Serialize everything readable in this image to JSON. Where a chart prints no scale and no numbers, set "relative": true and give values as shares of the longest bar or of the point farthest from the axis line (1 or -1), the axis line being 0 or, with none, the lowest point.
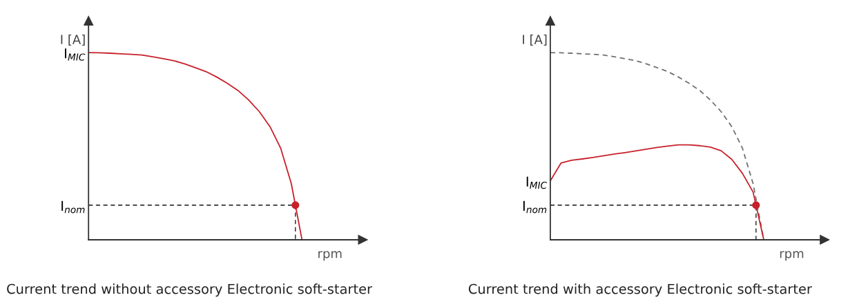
{
  "chart_data": [
    {
      "type": "line",
      "relative": true,
      "xlabel": "rpm",
      "ylabel": "I [A]",
      "categories": [
        null,
        null,
        null,
        null,
        null,
        null,
        null,
        null,
        null,
        null,
        null,
        null,
        null,
        null,
        null,
        null,
        null,
        null,
        null,
        null,
        null
      ],
      "series": [
        {
          "color": "#c8202a",
          "line_style": "solid",
          "values": [
            1.0,
            0.999,
            0.997,
            0.994,
            0.991,
            0.987,
            0.978,
            0.968,
            0.957,
            0.94,
            0.92,
            0.899,
            0.87,
            0.836,
            0.798,
            0.747,
            0.685,
            0.605,
            0.49,
            0.3,
            0
          ]
        }
      ],
      "ref_lines": [
        {
          "axis": "y",
          "value": 0.185,
          "label": "I$_{nom}$",
          "color": "#333333",
          "line_style": "dashed"
        }
      ],
      "annotations": [
        "I$_{MIC}$",
        "Current trend without accessory Electronic soft-starter"
      ]
    },
    {
      "type": "line",
      "relative": true,
      "xlabel": "rpm",
      "ylabel": "I [A]",
      "categories": [
        null,
        null,
        null,
        null,
        null,
        null,
        null,
        null,
        null,
        null,
        null,
        null,
        null,
        null,
        null,
        null,
        null,
        null,
        null,
        null,
        null
      ],
      "series": [
        {
          "color": "#707070",
          "line_style": "dashed",
          "values": [
            1.0,
            0.999,
            0.997,
            0.994,
            0.991,
            0.987,
            0.978,
            0.968,
            0.957,
            0.94,
            0.92,
            0.899,
            0.87,
            0.836,
            0.798,
            0.747,
            0.685,
            0.605,
            0.49,
            0.3,
            0
          ]
        },
        {
          "color": "#c8202a",
          "line_style": "solid",
          "values": [
            0.315,
            0.41,
            0.425,
            0.432,
            0.44,
            0.449,
            0.458,
            0.466,
            0.475,
            0.484,
            0.493,
            0.501,
            0.507,
            0.507,
            0.503,
            0.495,
            0.476,
            0.43,
            0.355,
            0.255,
            0
          ]
        }
      ],
      "ref_lines": [
        {
          "axis": "y",
          "value": 0.185,
          "label": "I$_{nom}$",
          "color": "#333333",
          "line_style": "dashed"
        }
      ],
      "annotations": [
        "I$_{MIC}$",
        "Current trend with accessory Electronic soft-starter"
      ]
    }
  ]
}
